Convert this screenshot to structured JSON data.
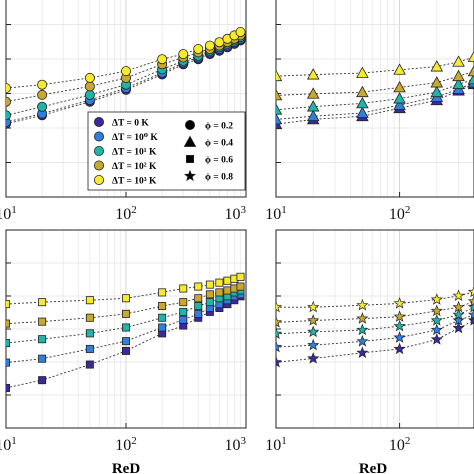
{
  "chart_data": [
    {
      "type": "scatter",
      "panel": "top-left",
      "xscale": "log",
      "xlim": [
        10,
        1000
      ],
      "xticklabels": [
        {
          "base": "10",
          "exp": "1"
        },
        {
          "base": "10",
          "exp": "2"
        },
        {
          "base": "10",
          "exp": "3"
        }
      ],
      "xlabel": "",
      "ylim": [
        0,
        1
      ],
      "grid": true,
      "marker": "circle",
      "x": [
        10,
        20,
        50,
        100,
        200,
        300,
        400,
        500,
        600,
        700,
        800,
        900
      ],
      "series": [
        {
          "name": "ΔT = 0 K",
          "color": "#3a2aa0",
          "values": [
            0.36,
            0.41,
            0.49,
            0.56,
            0.65,
            0.71,
            0.74,
            0.77,
            0.79,
            0.81,
            0.83,
            0.85
          ]
        },
        {
          "name": "ΔT = 10⁰ K",
          "color": "#2f7fe0",
          "values": [
            0.37,
            0.42,
            0.5,
            0.57,
            0.66,
            0.72,
            0.75,
            0.78,
            0.8,
            0.82,
            0.84,
            0.86
          ]
        },
        {
          "name": "ΔT = 10¹ K",
          "color": "#1fb5a8",
          "values": [
            0.41,
            0.46,
            0.53,
            0.59,
            0.68,
            0.73,
            0.76,
            0.79,
            0.81,
            0.83,
            0.85,
            0.87
          ]
        },
        {
          "name": "ΔT = 10² K",
          "color": "#c9a830",
          "values": [
            0.49,
            0.53,
            0.58,
            0.63,
            0.71,
            0.75,
            0.78,
            0.8,
            0.82,
            0.84,
            0.86,
            0.88
          ]
        },
        {
          "name": "ΔT = 10³ K",
          "color": "#f7ea2e",
          "values": [
            0.57,
            0.59,
            0.63,
            0.67,
            0.74,
            0.77,
            0.8,
            0.82,
            0.84,
            0.86,
            0.88,
            0.9
          ]
        }
      ],
      "legend": {
        "placement": "lower-right",
        "temperature_entries": [
          "ΔT = 0 K",
          "ΔT = 10⁰ K",
          "ΔT = 10¹ K",
          "ΔT = 10² K",
          "ΔT = 10³ K"
        ],
        "phi_entries": [
          {
            "label": "ϕ = 0.2",
            "marker": "circle"
          },
          {
            "label": "ϕ = 0.4",
            "marker": "triangle"
          },
          {
            "label": "ϕ = 0.6",
            "marker": "square"
          },
          {
            "label": "ϕ = 0.8",
            "marker": "star"
          }
        ]
      }
    },
    {
      "type": "scatter",
      "panel": "top-right",
      "xscale": "log",
      "xlim": [
        10,
        400
      ],
      "xticklabels": [
        {
          "base": "10",
          "exp": "1"
        },
        {
          "base": "10",
          "exp": "2"
        }
      ],
      "xlabel": "",
      "ylim": [
        0,
        1
      ],
      "grid": true,
      "marker": "triangle",
      "x": [
        10,
        20,
        50,
        100,
        200,
        300,
        400
      ],
      "series": [
        {
          "name": "ΔT = 0 K",
          "color": "#3a2aa0",
          "values": [
            0.38,
            0.41,
            0.43,
            0.48,
            0.53,
            0.59,
            0.63
          ]
        },
        {
          "name": "ΔT = 10⁰ K",
          "color": "#2f7fe0",
          "values": [
            0.41,
            0.43,
            0.45,
            0.5,
            0.55,
            0.6,
            0.64
          ]
        },
        {
          "name": "ΔT = 10¹ K",
          "color": "#1fb5a8",
          "values": [
            0.47,
            0.49,
            0.51,
            0.54,
            0.58,
            0.63,
            0.66
          ]
        },
        {
          "name": "ΔT = 10² K",
          "color": "#c9a830",
          "values": [
            0.56,
            0.57,
            0.58,
            0.61,
            0.64,
            0.68,
            0.71
          ]
        },
        {
          "name": "ΔT = 10³ K",
          "color": "#f7ea2e",
          "values": [
            0.68,
            0.69,
            0.7,
            0.72,
            0.74,
            0.77,
            0.8
          ]
        }
      ]
    },
    {
      "type": "scatter",
      "panel": "bottom-left",
      "xscale": "log",
      "xlim": [
        10,
        1000
      ],
      "xticklabels": [
        {
          "base": "10",
          "exp": "1"
        },
        {
          "base": "10",
          "exp": "2"
        },
        {
          "base": "10",
          "exp": "3"
        }
      ],
      "xlabel": "ReD",
      "ylim": [
        0,
        1
      ],
      "grid": true,
      "marker": "square",
      "x": [
        10,
        20,
        50,
        100,
        200,
        300,
        400,
        500,
        600,
        700,
        800,
        900
      ],
      "series": [
        {
          "name": "ΔT = 0 K",
          "color": "#3a2aa0",
          "values": [
            0.19,
            0.23,
            0.31,
            0.38,
            0.47,
            0.51,
            0.55,
            0.58,
            0.6,
            0.62,
            0.64,
            0.66
          ]
        },
        {
          "name": "ΔT = 10⁰ K",
          "color": "#2f7fe0",
          "values": [
            0.32,
            0.34,
            0.39,
            0.43,
            0.5,
            0.54,
            0.57,
            0.6,
            0.62,
            0.64,
            0.66,
            0.67
          ]
        },
        {
          "name": "ΔT = 10¹ K",
          "color": "#1fb5a8",
          "values": [
            0.42,
            0.44,
            0.47,
            0.5,
            0.55,
            0.58,
            0.61,
            0.63,
            0.65,
            0.66,
            0.68,
            0.69
          ]
        },
        {
          "name": "ΔT = 10² K",
          "color": "#c9a830",
          "values": [
            0.52,
            0.53,
            0.55,
            0.57,
            0.61,
            0.63,
            0.65,
            0.67,
            0.68,
            0.69,
            0.7,
            0.71
          ]
        },
        {
          "name": "ΔT = 10³ K",
          "color": "#f7ea2e",
          "values": [
            0.62,
            0.63,
            0.64,
            0.65,
            0.68,
            0.7,
            0.71,
            0.72,
            0.73,
            0.74,
            0.75,
            0.76
          ]
        }
      ]
    },
    {
      "type": "scatter",
      "panel": "bottom-right",
      "xscale": "log",
      "xlim": [
        10,
        400
      ],
      "xticklabels": [
        {
          "base": "10",
          "exp": "1"
        },
        {
          "base": "10",
          "exp": "2"
        }
      ],
      "xlabel": "ReD",
      "ylim": [
        0,
        1
      ],
      "grid": true,
      "marker": "star",
      "x": [
        10,
        20,
        50,
        100,
        200,
        300,
        400
      ],
      "series": [
        {
          "name": "ΔT = 0 K",
          "color": "#3a2aa0",
          "values": [
            0.33,
            0.35,
            0.38,
            0.4,
            0.45,
            0.51,
            0.55
          ]
        },
        {
          "name": "ΔT = 10⁰ K",
          "color": "#2f7fe0",
          "values": [
            0.41,
            0.42,
            0.44,
            0.46,
            0.5,
            0.55,
            0.58
          ]
        },
        {
          "name": "ΔT = 10¹ K",
          "color": "#1fb5a8",
          "values": [
            0.48,
            0.49,
            0.5,
            0.52,
            0.55,
            0.58,
            0.62
          ]
        },
        {
          "name": "ΔT = 10² K",
          "color": "#c9a830",
          "values": [
            0.54,
            0.55,
            0.56,
            0.57,
            0.6,
            0.62,
            0.65
          ]
        },
        {
          "name": "ΔT = 10³ K",
          "color": "#f7ea2e",
          "values": [
            0.62,
            0.62,
            0.63,
            0.64,
            0.66,
            0.68,
            0.7
          ]
        }
      ]
    }
  ]
}
